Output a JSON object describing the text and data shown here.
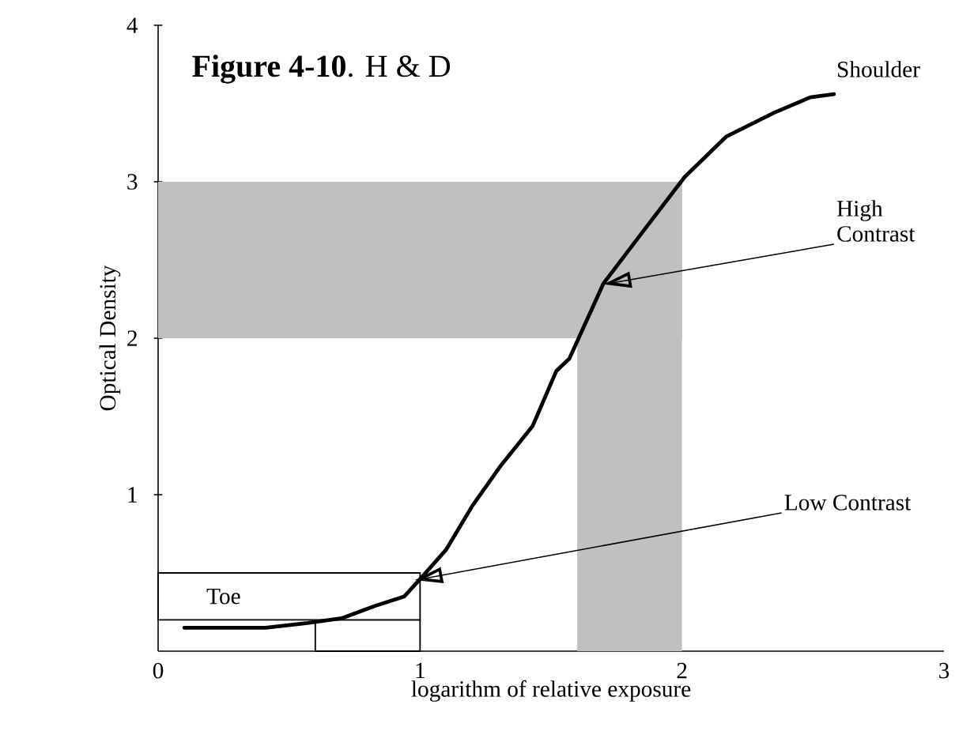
{
  "chart_data": {
    "type": "line",
    "title": "**Figure 4-10**.  H & D",
    "xlabel": "logarithm  of relative exposure",
    "ylabel": "Optical Density",
    "xlim": [
      0,
      3
    ],
    "ylim": [
      0,
      4
    ],
    "xticks": [
      0,
      1,
      2,
      3
    ],
    "yticks": [
      1,
      2,
      3,
      4
    ],
    "grid": false,
    "marker": "none",
    "line_style": "solid",
    "series": [
      {
        "color": "#000000",
        "x": [
          0.1,
          0.41,
          0.57,
          0.7,
          0.83,
          0.94,
          1.0,
          1.1,
          1.2,
          1.31,
          1.43,
          1.52,
          1.57,
          1.7,
          1.85,
          2.01,
          2.17,
          2.35,
          2.49,
          2.58
        ],
        "values": [
          0.15,
          0.15,
          0.18,
          0.21,
          0.29,
          0.35,
          0.46,
          0.65,
          0.93,
          1.19,
          1.44,
          1.79,
          1.87,
          2.35,
          2.68,
          3.03,
          3.29,
          3.44,
          3.54,
          3.56
        ]
      }
    ],
    "bands": [
      {
        "axis": "x",
        "from": 1.6,
        "to": 2.0,
        "color": "#c0c0c0"
      },
      {
        "axis": "y",
        "from": 2,
        "to": 3,
        "color": "#c0c0c0"
      },
      {
        "axis": "x",
        "from": 0.6,
        "to": 1.0,
        "color": "#ffffff"
      },
      {
        "axis": "y",
        "from": 0.2,
        "to": 0.5,
        "color": "#ffffff",
        "label": "Toe"
      }
    ],
    "annotations": [
      "Shoulder",
      {
        "text": "High Contrast",
        "x": 1.72,
        "y": 2.35
      },
      {
        "text": "Low Contrast",
        "x": 1.0,
        "y": 0.46
      }
    ]
  }
}
